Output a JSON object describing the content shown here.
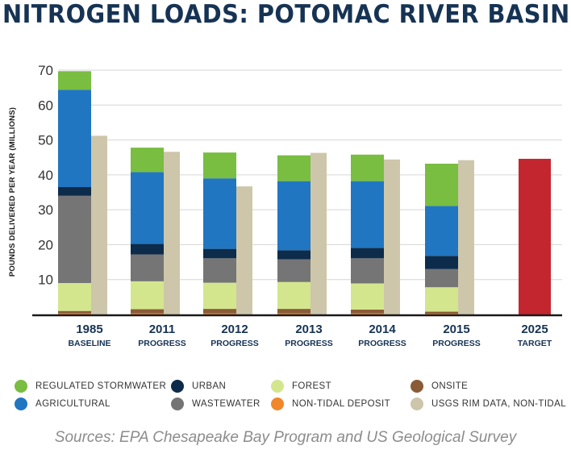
{
  "chart_data": {
    "type": "bar",
    "title": "NITROGEN LOADS: POTOMAC RIVER BASIN",
    "ylabel": "POUNDS DELIVERED PER YEAR (MILLIONS)",
    "xlabel": "",
    "ylim": [
      0,
      70
    ],
    "yticks": [
      10,
      20,
      30,
      40,
      50,
      60,
      70
    ],
    "grid": true,
    "stacked": true,
    "categories": [
      {
        "year": "1985",
        "label": "BASELINE"
      },
      {
        "year": "2011",
        "label": "PROGRESS"
      },
      {
        "year": "2012",
        "label": "PROGRESS"
      },
      {
        "year": "2013",
        "label": "PROGRESS"
      },
      {
        "year": "2014",
        "label": "PROGRESS"
      },
      {
        "year": "2015",
        "label": "PROGRESS"
      },
      {
        "year": "2025",
        "label": "TARGET"
      }
    ],
    "stack_order": [
      "Non-Tidal Deposit",
      "Onsite",
      "Forest",
      "Wastewater",
      "Urban",
      "Agricultural",
      "Regulated Stormwater"
    ],
    "series": [
      {
        "name": "Non-Tidal Deposit",
        "color": "#f0872a",
        "values": [
          0.3,
          0.3,
          0.3,
          0.3,
          0.3,
          0.2,
          null
        ]
      },
      {
        "name": "Onsite",
        "color": "#8b5a36",
        "values": [
          0.7,
          1.2,
          1.3,
          1.3,
          1.1,
          0.6,
          null
        ]
      },
      {
        "name": "Forest",
        "color": "#d3e68e",
        "values": [
          8.0,
          8.0,
          7.5,
          7.7,
          7.5,
          7.0,
          null
        ]
      },
      {
        "name": "Wastewater",
        "color": "#757575",
        "values": [
          25.0,
          7.7,
          7.0,
          6.5,
          7.2,
          5.2,
          null
        ]
      },
      {
        "name": "Urban",
        "color": "#0d2b4a",
        "values": [
          2.5,
          3.0,
          2.7,
          2.6,
          3.0,
          3.8,
          null
        ]
      },
      {
        "name": "Agricultural",
        "color": "#2176c1",
        "values": [
          27.9,
          20.6,
          20.2,
          19.8,
          19.1,
          14.3,
          null
        ]
      },
      {
        "name": "Regulated Stormwater",
        "color": "#79bd41",
        "values": [
          5.3,
          7.0,
          7.4,
          7.4,
          7.6,
          12.1,
          null
        ]
      }
    ],
    "reference_series": {
      "name": "USGS RIM Data, Non-Tidal",
      "color": "#cdc6aa",
      "values": [
        51.2,
        46.6,
        36.7,
        46.3,
        44.4,
        44.2,
        null
      ]
    },
    "target": {
      "name": "2025 Target",
      "color": "#c3262e",
      "value": 44.6
    }
  },
  "legend": [
    {
      "label": "REGULATED STORMWATER",
      "color": "#79bd41"
    },
    {
      "label": "URBAN",
      "color": "#0d2b4a"
    },
    {
      "label": "FOREST",
      "color": "#d3e68e"
    },
    {
      "label": "ONSITE",
      "color": "#8b5a36"
    },
    {
      "label": "AGRICULTURAL",
      "color": "#2176c1"
    },
    {
      "label": "WASTEWATER",
      "color": "#757575"
    },
    {
      "label": "NON-TIDAL DEPOSIT",
      "color": "#f0872a"
    },
    {
      "label": "USGS RIM DATA, NON-TIDAL",
      "color": "#cdc6aa"
    }
  ],
  "source": "Sources: EPA Chesapeake Bay Program and US Geological Survey",
  "colors": {
    "title": "#163354",
    "axis": "#333333",
    "grid": "#d6d6d6"
  }
}
